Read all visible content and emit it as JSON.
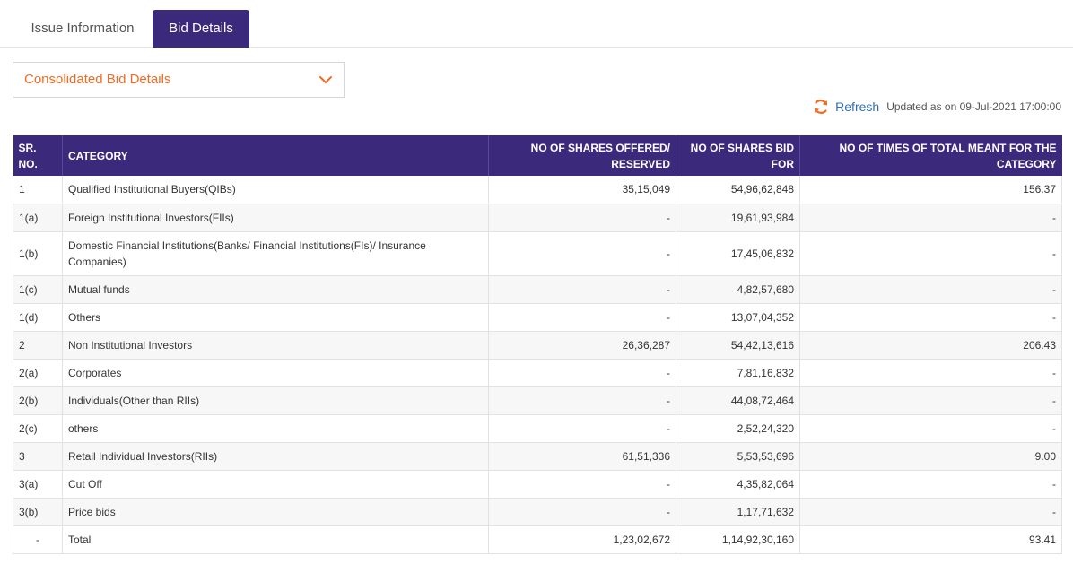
{
  "tabs": [
    {
      "label": "Issue Information",
      "active": false
    },
    {
      "label": "Bid Details",
      "active": true
    }
  ],
  "dropdown": {
    "selected": "Consolidated Bid Details",
    "icon": "chevron-down-icon"
  },
  "refresh": {
    "label": "Refresh",
    "icon": "refresh-icon",
    "updated": "Updated as on 09-Jul-2021 17:00:00"
  },
  "colors": {
    "header_bg": "#3b2a7c",
    "accent": "#f26b21",
    "link": "#2c6fb7"
  },
  "table": {
    "headers": [
      "SR. NO.",
      "CATEGORY",
      "NO OF SHARES OFFERED/ RESERVED",
      "NO OF SHARES BID FOR",
      "NO OF TIMES OF TOTAL MEANT FOR THE CATEGORY"
    ],
    "rows": [
      [
        "1",
        "Qualified Institutional Buyers(QIBs)",
        "35,15,049",
        "54,96,62,848",
        "156.37"
      ],
      [
        "1(a)",
        "Foreign Institutional Investors(FIIs)",
        "-",
        "19,61,93,984",
        "-"
      ],
      [
        "1(b)",
        "Domestic Financial Institutions(Banks/ Financial Institutions(FIs)/ Insurance Companies)",
        "-",
        "17,45,06,832",
        "-"
      ],
      [
        "1(c)",
        "Mutual funds",
        "-",
        "4,82,57,680",
        "-"
      ],
      [
        "1(d)",
        "Others",
        "-",
        "13,07,04,352",
        "-"
      ],
      [
        "2",
        "Non Institutional Investors",
        "26,36,287",
        "54,42,13,616",
        "206.43"
      ],
      [
        "2(a)",
        "Corporates",
        "-",
        "7,81,16,832",
        "-"
      ],
      [
        "2(b)",
        "Individuals(Other than RIIs)",
        "-",
        "44,08,72,464",
        "-"
      ],
      [
        "2(c)",
        "others",
        "-",
        "2,52,24,320",
        "-"
      ],
      [
        "3",
        "Retail Individual Investors(RIIs)",
        "61,51,336",
        "5,53,53,696",
        "9.00"
      ],
      [
        "3(a)",
        "Cut Off",
        "-",
        "4,35,82,064",
        "-"
      ],
      [
        "3(b)",
        "Price bids",
        "-",
        "1,17,71,632",
        "-"
      ],
      [
        "-",
        "Total",
        "1,23,02,672",
        "1,14,92,30,160",
        "93.41"
      ]
    ]
  }
}
